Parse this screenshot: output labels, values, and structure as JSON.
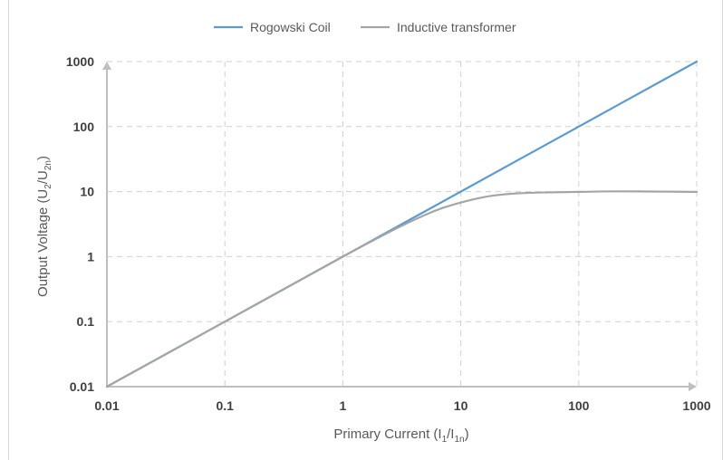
{
  "chart_data": {
    "type": "line",
    "title": "",
    "xlabel": "Primary Current (I1/I1n)",
    "xlabel_parts": {
      "base": "Primary Current (I",
      "sub1": "1",
      "mid": "/I",
      "sub2": "1n",
      "end": ")"
    },
    "ylabel": "Output Voltage (U2/U2n)",
    "ylabel_parts": {
      "base": "Output Voltage (U",
      "sub1": "2",
      "mid": "/U",
      "sub2": "2n",
      "end": ")"
    },
    "x_scale": "log",
    "y_scale": "log",
    "xlim": [
      0.01,
      1000
    ],
    "ylim": [
      0.01,
      1000
    ],
    "x_ticks": [
      0.01,
      0.1,
      1,
      10,
      100,
      1000
    ],
    "x_tick_labels": [
      "0.01",
      "0.1",
      "1",
      "10",
      "100",
      "1000"
    ],
    "y_ticks": [
      0.01,
      0.1,
      1,
      10,
      100,
      1000
    ],
    "y_tick_labels": [
      "0.01",
      "0.1",
      "1",
      "10",
      "100",
      "1000"
    ],
    "grid": true,
    "legend_position": "top-center",
    "series": [
      {
        "name": "Rogowski Coil",
        "color": "#5b9bd5",
        "x": [
          0.01,
          0.1,
          1,
          10,
          100,
          1000
        ],
        "y": [
          0.01,
          0.1,
          1,
          10,
          100,
          1000
        ]
      },
      {
        "name": "Inductive transformer",
        "color": "#a5a5a5",
        "x": [
          0.01,
          0.1,
          1,
          2,
          3,
          5,
          7,
          10,
          15,
          20,
          30,
          50,
          100,
          200,
          500,
          1000
        ],
        "y": [
          0.01,
          0.1,
          1,
          1.95,
          2.85,
          4.4,
          5.6,
          6.8,
          8.1,
          8.8,
          9.4,
          9.7,
          9.9,
          10.1,
          10.0,
          9.9
        ]
      }
    ]
  }
}
